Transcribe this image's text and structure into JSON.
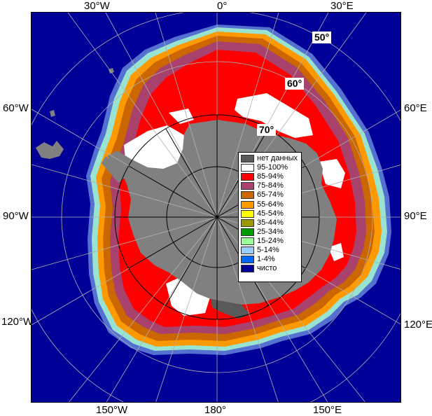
{
  "map": {
    "top_labels": [
      "30°W",
      "0°",
      "30°E"
    ],
    "left_labels": [
      "60°W",
      "90°W",
      "120°W"
    ],
    "right_labels": [
      "60°E",
      "90°E",
      "120°E"
    ],
    "bottom_labels": [
      "150°W",
      "180°",
      "150°E"
    ],
    "lat_labels": [
      "50°",
      "60°",
      "70°"
    ]
  },
  "legend": {
    "items": [
      {
        "label": "нет данных",
        "color": "#595959"
      },
      {
        "label": "95-100%",
        "color": "#ffffff"
      },
      {
        "label": "85-94%",
        "color": "#ff0000"
      },
      {
        "label": "75-84%",
        "color": "#a8426c"
      },
      {
        "label": "65-74%",
        "color": "#cc6600"
      },
      {
        "label": "55-64%",
        "color": "#ff9900"
      },
      {
        "label": "45-54%",
        "color": "#ffff00"
      },
      {
        "label": "35-44%",
        "color": "#999900"
      },
      {
        "label": "25-34%",
        "color": "#009900"
      },
      {
        "label": "15-24%",
        "color": "#99ff99"
      },
      {
        "label": "5-14%",
        "color": "#99ccff"
      },
      {
        "label": "1-4%",
        "color": "#0066ff"
      },
      {
        "label": "чисто",
        "color": "#000099"
      }
    ]
  },
  "colors": {
    "ocean": "#000099",
    "land": "#808080",
    "no_data": "#595959",
    "grid": "#b0b0b0"
  }
}
